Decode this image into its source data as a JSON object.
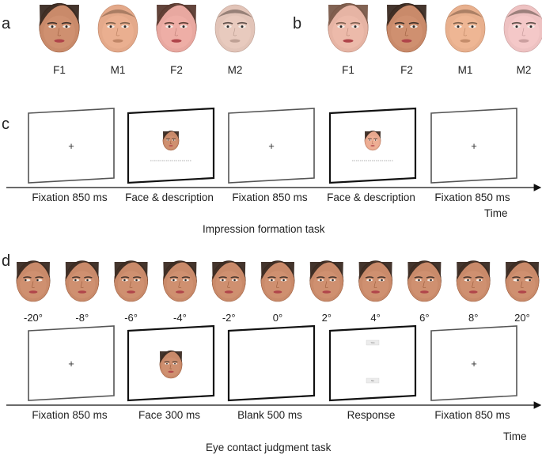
{
  "panels": {
    "a": {
      "letter": "a",
      "faces": [
        {
          "label": "F1",
          "gender": "female",
          "skin": "#c98a6a",
          "hair": "#3a2a22"
        },
        {
          "label": "M1",
          "gender": "male",
          "skin": "#e4a98a",
          "hair": "#7a5a44"
        },
        {
          "label": "F2",
          "gender": "female",
          "skin": "#e8a8a0",
          "hair": "#5a3a30"
        },
        {
          "label": "M2",
          "gender": "male",
          "skin": "#e2c4b8",
          "hair": "#5a4a44"
        }
      ]
    },
    "b": {
      "letter": "b",
      "faces": [
        {
          "label": "F1",
          "gender": "female",
          "skin": "#e6b4a4",
          "hair": "#7a5a4a"
        },
        {
          "label": "F2",
          "gender": "female",
          "skin": "#c98a6a",
          "hair": "#3a2a22"
        },
        {
          "label": "M1",
          "gender": "male",
          "skin": "#e8b08e",
          "hair": "#7a5a44"
        },
        {
          "label": "M2",
          "gender": "male",
          "skin": "#eec2c2",
          "hair": "#5a4a44"
        }
      ]
    },
    "c": {
      "letter": "c",
      "frames": [
        {
          "label": "Fixation 850 ms",
          "content": "fixation"
        },
        {
          "label": "Face & description",
          "content": "face-text",
          "face_skin": "#c98a6a"
        },
        {
          "label": "Fixation 850 ms",
          "content": "fixation"
        },
        {
          "label": "Face & description",
          "content": "face-text",
          "face_skin": "#e8a88e"
        },
        {
          "label": "Fixation 850 ms",
          "content": "fixation"
        }
      ],
      "fixation_symbol": "+",
      "time_label": "Time",
      "task_label": "Impression formation task"
    },
    "d": {
      "letter": "d",
      "gaze_faces": [
        {
          "angle": "-20°",
          "gaze": -20
        },
        {
          "angle": "-8°",
          "gaze": -8
        },
        {
          "angle": "-6°",
          "gaze": -6
        },
        {
          "angle": "-4°",
          "gaze": -4
        },
        {
          "angle": "-2°",
          "gaze": -2
        },
        {
          "angle": "0°",
          "gaze": 0
        },
        {
          "angle": "2°",
          "gaze": 2
        },
        {
          "angle": "4°",
          "gaze": 4
        },
        {
          "angle": "6°",
          "gaze": 6
        },
        {
          "angle": "8°",
          "gaze": 8
        },
        {
          "angle": "20°",
          "gaze": 20
        }
      ],
      "gaze_face_skin": "#c98a6a",
      "frames": [
        {
          "label": "Fixation 850 ms",
          "content": "fixation"
        },
        {
          "label": "Face 300 ms",
          "content": "face",
          "face_skin": "#c98a6a"
        },
        {
          "label": "Blank 500 ms",
          "content": "blank"
        },
        {
          "label": "Response",
          "content": "response",
          "response_buttons": [
            "Yes",
            "No"
          ]
        },
        {
          "label": "Fixation 850 ms",
          "content": "fixation"
        }
      ],
      "fixation_symbol": "+",
      "time_label": "Time",
      "task_label": "Eye contact judgment task"
    }
  },
  "colors": {
    "frame_stroke": "#555555",
    "frame_stroke_bold": "#111111",
    "axis": "#111111",
    "lips": "#b0454a",
    "eye": "#2b2b2b"
  }
}
